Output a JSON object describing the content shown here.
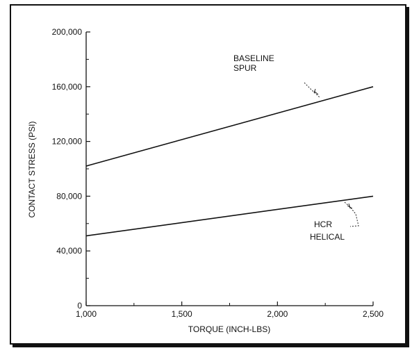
{
  "chart_data": {
    "type": "line",
    "title": "",
    "xlabel": "TORQUE (INCH-LBS)",
    "ylabel": "CONTACT STRESS (PSI)",
    "xlim": [
      1000,
      2500
    ],
    "ylim": [
      0,
      200000
    ],
    "x_ticks": [
      1000,
      1500,
      2000,
      2500
    ],
    "x_tick_labels": [
      "1,000",
      "1,500",
      "2,000",
      "2,500"
    ],
    "y_ticks": [
      0,
      40000,
      80000,
      120000,
      160000,
      200000
    ],
    "y_tick_labels": [
      "0",
      "40,000",
      "80,000",
      "120,000",
      "160,000",
      "200,000"
    ],
    "grid": false,
    "legend": "none",
    "series": [
      {
        "name": "BASELINE SPUR",
        "label_lines": [
          "BASELINE",
          "SPUR"
        ],
        "x": [
          1000,
          2500
        ],
        "y": [
          102000,
          160000
        ]
      },
      {
        "name": "HCR HELICAL",
        "label_lines": [
          "HCR",
          "HELICAL"
        ],
        "x": [
          1000,
          2500
        ],
        "y": [
          51000,
          80000
        ]
      }
    ]
  }
}
